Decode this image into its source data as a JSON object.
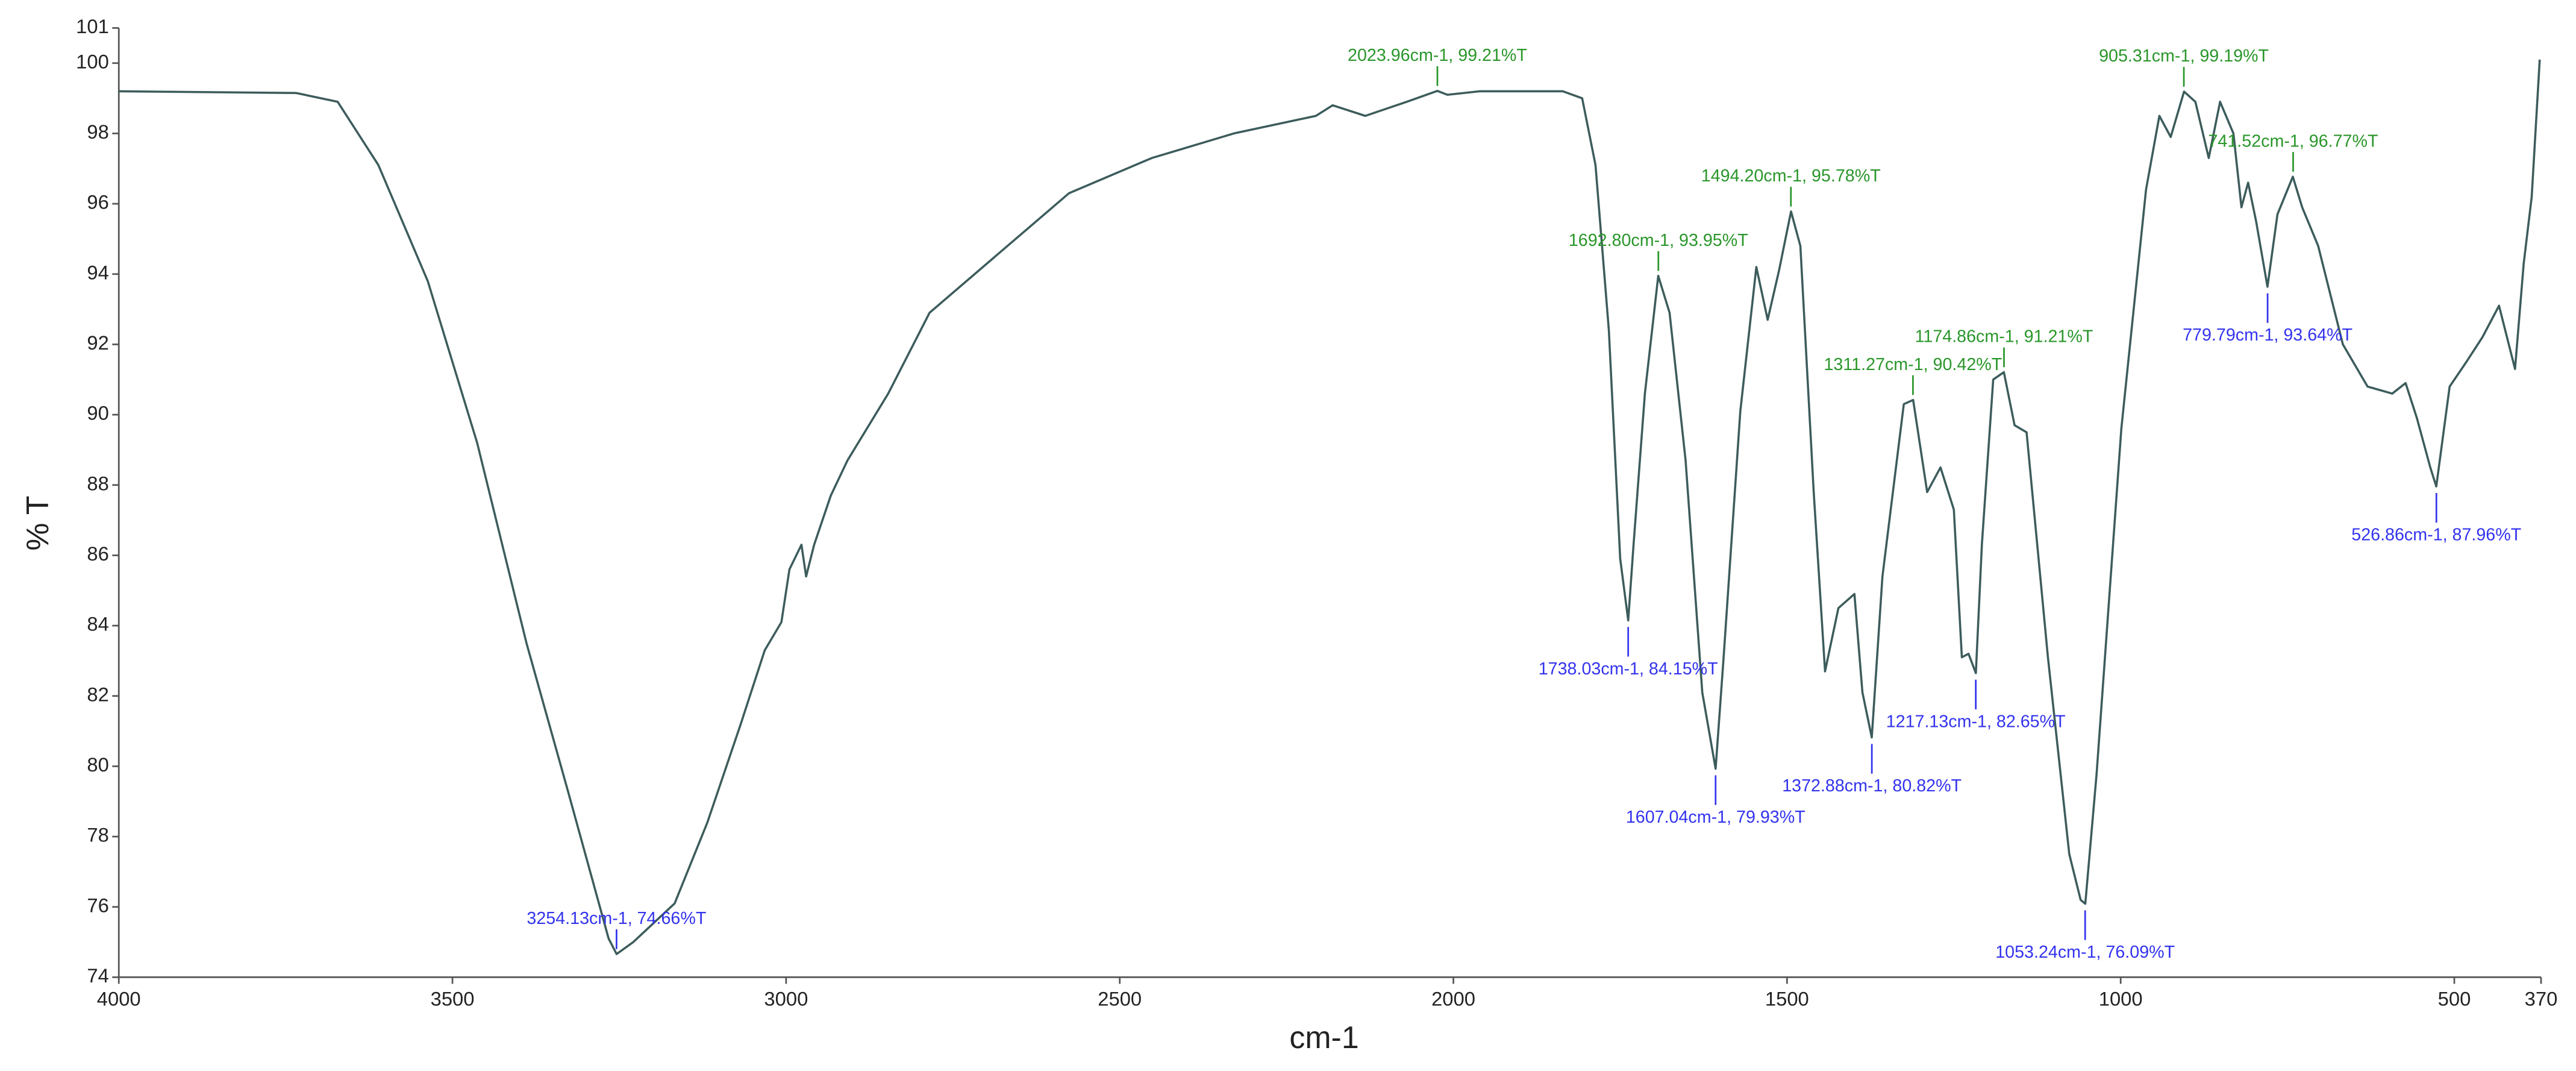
{
  "chart_data": {
    "type": "line",
    "xlabel": "cm-1",
    "ylabel": "% T",
    "xlim": [
      4000,
      370
    ],
    "ylim": [
      74,
      101
    ],
    "xticks": [
      4000,
      3500,
      3000,
      2500,
      2000,
      1500,
      1000,
      500,
      370
    ],
    "yticks": [
      74,
      76,
      78,
      80,
      82,
      84,
      86,
      88,
      90,
      92,
      94,
      96,
      98,
      100,
      101
    ],
    "grid": false,
    "color": "#3d5c5c",
    "x": [
      4000,
      3734,
      3672,
      3611,
      3537,
      3463,
      3389,
      3327,
      3266,
      3254,
      3229,
      3167,
      3118,
      3068,
      3032,
      3007,
      2995,
      2977,
      2970,
      2958,
      2933,
      2908,
      2847,
      2785,
      2699,
      2576,
      2452,
      2329,
      2206,
      2181,
      2132,
      2070,
      2024,
      2009,
      1960,
      1836,
      1807,
      1787,
      1767,
      1750,
      1738,
      1730,
      1713,
      1693,
      1676,
      1652,
      1627,
      1607,
      1595,
      1570,
      1546,
      1529,
      1512,
      1494,
      1480,
      1460,
      1443,
      1423,
      1399,
      1387,
      1373,
      1357,
      1325,
      1311,
      1290,
      1270,
      1250,
      1238,
      1228,
      1217,
      1208,
      1191,
      1175,
      1159,
      1141,
      1109,
      1077,
      1060,
      1053,
      1036,
      999,
      962,
      942,
      925,
      905,
      888,
      868,
      851,
      831,
      819,
      809,
      797,
      780,
      765,
      742,
      728,
      704,
      667,
      630,
      593,
      573,
      556,
      536,
      527,
      507,
      482,
      458,
      433,
      421,
      409,
      396,
      384,
      372
    ],
    "values": [
      99.2,
      99.15,
      98.9,
      97.1,
      93.8,
      89.2,
      83.5,
      79.3,
      75.1,
      74.66,
      75.0,
      76.1,
      78.4,
      81.2,
      83.3,
      84.1,
      85.6,
      86.3,
      85.4,
      86.3,
      87.7,
      88.7,
      90.6,
      92.9,
      94.3,
      96.3,
      97.3,
      98.0,
      98.5,
      98.8,
      98.5,
      98.9,
      99.21,
      99.1,
      99.2,
      99.2,
      99.0,
      97.1,
      92.4,
      85.9,
      84.15,
      86.3,
      90.6,
      93.95,
      92.9,
      88.7,
      82.1,
      79.93,
      83.1,
      90.1,
      94.2,
      92.7,
      94.1,
      95.78,
      94.8,
      87.8,
      82.7,
      84.5,
      84.9,
      82.1,
      80.82,
      85.4,
      90.3,
      90.42,
      87.8,
      88.5,
      87.3,
      83.1,
      83.2,
      82.65,
      86.3,
      91.0,
      91.21,
      89.7,
      89.5,
      83.1,
      77.5,
      76.2,
      76.09,
      79.8,
      89.6,
      96.4,
      98.5,
      97.9,
      99.19,
      98.9,
      97.3,
      98.9,
      98.0,
      95.9,
      96.6,
      95.5,
      93.64,
      95.7,
      96.77,
      95.9,
      94.8,
      92.0,
      90.8,
      90.6,
      90.9,
      89.9,
      88.5,
      87.96,
      90.8,
      91.5,
      92.2,
      93.1,
      92.2,
      91.3,
      94.3,
      96.2,
      100.1
    ],
    "annotations": [
      {
        "x": 3254.13,
        "y": 74.66,
        "label": "3254.13cm-1, 74.66%T",
        "color": "#3333ee"
      },
      {
        "x": 2023.96,
        "y": 99.21,
        "label": "2023.96cm-1, 99.21%T",
        "color": "#2a962a"
      },
      {
        "x": 1738.03,
        "y": 84.15,
        "label": "1738.03cm-1, 84.15%T",
        "color": "#3333ee"
      },
      {
        "x": 1692.8,
        "y": 93.95,
        "label": "1692.80cm-1, 93.95%T",
        "color": "#2a962a"
      },
      {
        "x": 1607.04,
        "y": 79.93,
        "label": "1607.04cm-1, 79.93%T",
        "color": "#3333ee"
      },
      {
        "x": 1494.2,
        "y": 95.78,
        "label": "1494.20cm-1, 95.78%T",
        "color": "#2a962a"
      },
      {
        "x": 1372.88,
        "y": 80.82,
        "label": "1372.88cm-1, 80.82%T",
        "color": "#3333ee"
      },
      {
        "x": 1311.27,
        "y": 90.42,
        "label": "1311.27cm-1, 90.42%T",
        "color": "#2a962a"
      },
      {
        "x": 1217.13,
        "y": 82.65,
        "label": "1217.13cm-1, 82.65%T",
        "color": "#3333ee"
      },
      {
        "x": 1174.86,
        "y": 91.21,
        "label": "1174.86cm-1, 91.21%T",
        "color": "#2a962a"
      },
      {
        "x": 1053.24,
        "y": 76.09,
        "label": "1053.24cm-1, 76.09%T",
        "color": "#3333ee"
      },
      {
        "x": 905.31,
        "y": 99.19,
        "label": "905.31cm-1, 99.19%T",
        "color": "#2a962a"
      },
      {
        "x": 779.79,
        "y": 93.64,
        "label": "779.79cm-1, 93.64%T",
        "color": "#3333ee"
      },
      {
        "x": 741.52,
        "y": 96.77,
        "label": "741.52cm-1, 96.77%T",
        "color": "#2a962a"
      },
      {
        "x": 526.86,
        "y": 87.96,
        "label": "526.86cm-1, 87.96%T",
        "color": "#3333ee"
      }
    ]
  }
}
